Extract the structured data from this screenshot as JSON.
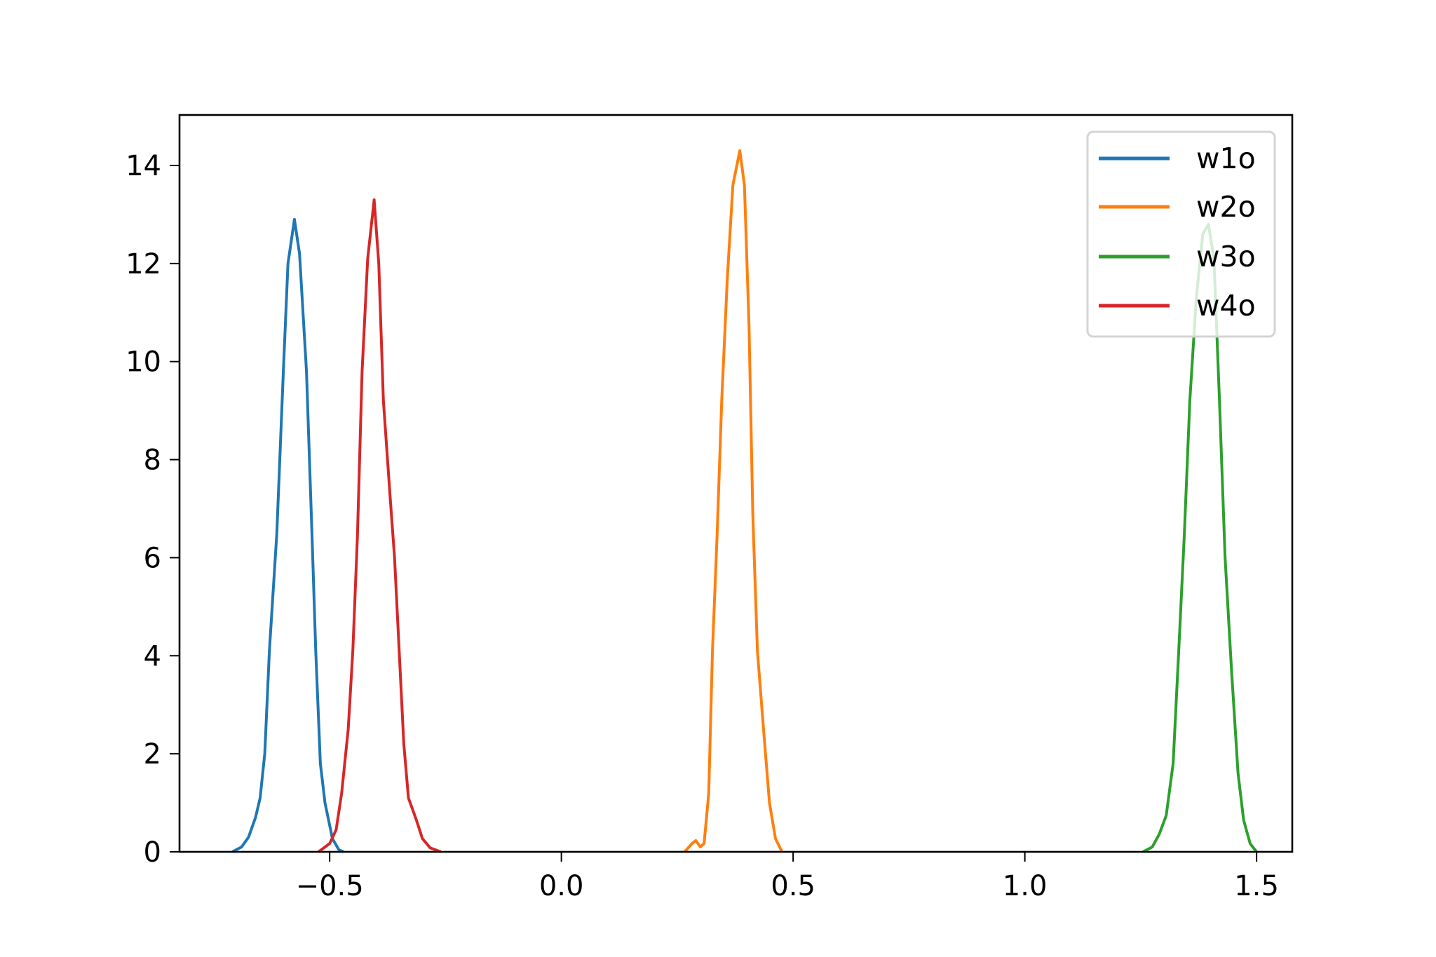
{
  "chart_data": {
    "type": "line",
    "title": "",
    "xlabel": "",
    "ylabel": "",
    "xlim": [
      -0.824,
      1.577
    ],
    "ylim": [
      0,
      15.03
    ],
    "xticks": [
      -0.5,
      0.0,
      0.5,
      1.0,
      1.5
    ],
    "xtick_labels": [
      "−0.5",
      "0.0",
      "0.5",
      "1.0",
      "1.5"
    ],
    "yticks": [
      0,
      2,
      4,
      6,
      8,
      10,
      12,
      14
    ],
    "ytick_labels": [
      "0",
      "2",
      "4",
      "6",
      "8",
      "10",
      "12",
      "14"
    ],
    "grid": false,
    "legend_position": "upper-right",
    "series": [
      {
        "name": "w1o",
        "color": "#1f77b4",
        "x": [
          -0.71,
          -0.69,
          -0.675,
          -0.66,
          -0.65,
          -0.64,
          -0.63,
          -0.614,
          -0.6,
          -0.59,
          -0.576,
          -0.565,
          -0.55,
          -0.538,
          -0.53,
          -0.52,
          -0.51,
          -0.494,
          -0.48,
          -0.47
        ],
        "y": [
          0,
          0.1,
          0.3,
          0.7,
          1.1,
          2.0,
          4.1,
          6.5,
          9.8,
          12.0,
          12.9,
          12.2,
          9.8,
          6.45,
          4.1,
          1.8,
          1.0,
          0.27,
          0.04,
          0
        ]
      },
      {
        "name": "w2o",
        "color": "#ff7f0e",
        "x": [
          0.266,
          0.282,
          0.29,
          0.3,
          0.308,
          0.318,
          0.326,
          0.336,
          0.346,
          0.358,
          0.37,
          0.385,
          0.395,
          0.405,
          0.413,
          0.423,
          0.437,
          0.449,
          0.462,
          0.476
        ],
        "y": [
          0,
          0.17,
          0.23,
          0.1,
          0.17,
          1.2,
          4.1,
          6.45,
          9.2,
          11.7,
          13.6,
          14.3,
          13.6,
          10.7,
          6.9,
          4.1,
          2.4,
          1.0,
          0.27,
          0
        ]
      },
      {
        "name": "w3o",
        "color": "#2ca02c",
        "x": [
          1.255,
          1.275,
          1.29,
          1.305,
          1.32,
          1.332,
          1.344,
          1.356,
          1.37,
          1.384,
          1.396,
          1.408,
          1.42,
          1.432,
          1.446,
          1.46,
          1.472,
          1.486,
          1.5
        ],
        "y": [
          0,
          0.1,
          0.36,
          0.74,
          1.8,
          4.1,
          6.45,
          9.2,
          11.3,
          12.6,
          12.8,
          12.1,
          9.2,
          6.0,
          3.7,
          1.6,
          0.65,
          0.17,
          0
        ]
      },
      {
        "name": "w4o",
        "color": "#d62728",
        "x": [
          -0.524,
          -0.5,
          -0.486,
          -0.474,
          -0.46,
          -0.45,
          -0.44,
          -0.43,
          -0.418,
          -0.404,
          -0.394,
          -0.384,
          -0.37,
          -0.36,
          -0.35,
          -0.34,
          -0.33,
          -0.313,
          -0.3,
          -0.283,
          -0.26
        ],
        "y": [
          0,
          0.17,
          0.45,
          1.2,
          2.5,
          4.1,
          6.45,
          9.8,
          12.1,
          13.3,
          12.0,
          9.2,
          7.3,
          6.0,
          4.1,
          2.2,
          1.1,
          0.65,
          0.27,
          0.08,
          0
        ]
      }
    ]
  }
}
